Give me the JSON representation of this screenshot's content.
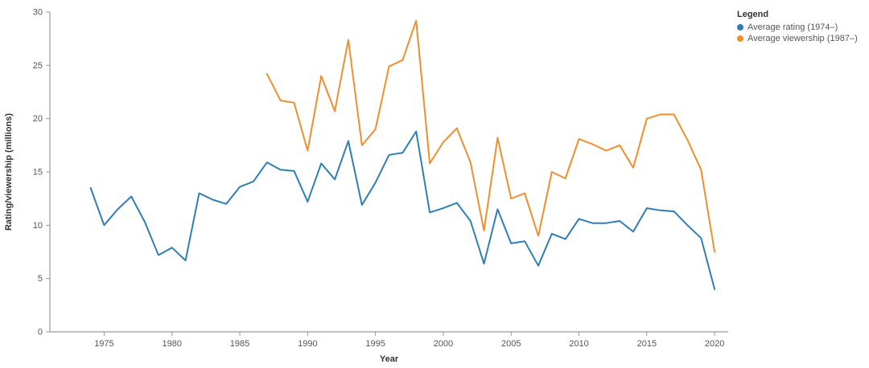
{
  "legend": {
    "title": "Legend",
    "entries": [
      {
        "id": "average-rating",
        "label": "Average rating (1974–)",
        "color": "#2d7fb5"
      },
      {
        "id": "average-viewership",
        "label": "Average viewership (1987–)",
        "color": "#ef8f2d"
      }
    ]
  },
  "chart_data": {
    "type": "line",
    "title": "",
    "xlabel": "Year",
    "ylabel": "Rating/viewership (millions)",
    "xlim": [
      1971,
      2021
    ],
    "ylim": [
      0,
      30
    ],
    "x_ticks": [
      1975,
      1980,
      1985,
      1990,
      1995,
      2000,
      2005,
      2010,
      2015,
      2020
    ],
    "y_ticks": [
      0,
      5,
      10,
      15,
      20,
      25,
      30
    ],
    "x_step": 1,
    "grid": false,
    "legend_position": "top-right",
    "series": [
      {
        "id": "average-rating",
        "name": "Average rating (1974–)",
        "color": "#2d7fb5",
        "x_start": 1974,
        "values": [
          13.5,
          10.0,
          11.5,
          12.7,
          10.3,
          7.2,
          7.9,
          6.7,
          13.0,
          12.4,
          12.0,
          13.6,
          14.1,
          15.9,
          15.2,
          15.1,
          12.2,
          15.8,
          14.3,
          17.9,
          11.9,
          14.0,
          16.6,
          16.8,
          18.8,
          11.2,
          11.6,
          12.1,
          10.4,
          6.4,
          11.5,
          8.3,
          8.5,
          6.2,
          9.2,
          8.7,
          10.6,
          10.2,
          10.2,
          10.4,
          9.4,
          11.6,
          11.4,
          11.3,
          10.0,
          8.8,
          4.0
        ]
      },
      {
        "id": "average-viewership",
        "name": "Average viewership (1987–)",
        "color": "#ef8f2d",
        "x_start": 1987,
        "values": [
          24.2,
          21.7,
          21.5,
          17.0,
          24.0,
          20.7,
          27.4,
          17.5,
          19.0,
          24.9,
          25.5,
          29.2,
          15.8,
          17.8,
          19.1,
          15.9,
          9.5,
          18.2,
          12.5,
          13.0,
          9.0,
          15.0,
          14.4,
          18.1,
          17.6,
          17.0,
          17.5,
          15.4,
          20.0,
          20.4,
          20.4,
          18.0,
          15.2,
          7.5
        ]
      }
    ]
  }
}
